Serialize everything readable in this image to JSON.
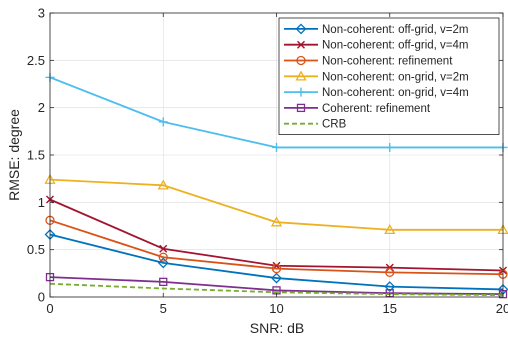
{
  "chart_data": {
    "type": "line",
    "xlabel": "SNR: dB",
    "ylabel": "RMSE: degree",
    "xlim": [
      0,
      20
    ],
    "ylim": [
      0,
      3
    ],
    "x_ticks": [
      "0",
      "5",
      "10",
      "15",
      "20"
    ],
    "y_ticks": [
      "0",
      "0.5",
      "1",
      "1.5",
      "2",
      "2.5",
      "3"
    ],
    "grid": true,
    "legend_position": "top-right",
    "x": [
      0,
      5,
      10,
      15,
      20
    ],
    "series": [
      {
        "name": "Non-coherent: off-grid, v=2m",
        "values": [
          0.66,
          0.36,
          0.2,
          0.11,
          0.08
        ],
        "color": "#0072BD",
        "marker": "diamond",
        "dash": "solid"
      },
      {
        "name": "Non-coherent: off-grid, v=4m",
        "values": [
          1.03,
          0.51,
          0.33,
          0.31,
          0.28
        ],
        "color": "#A2142F",
        "marker": "x",
        "dash": "solid"
      },
      {
        "name": "Non-coherent: refinement",
        "values": [
          0.81,
          0.42,
          0.3,
          0.26,
          0.24
        ],
        "color": "#D95319",
        "marker": "circle",
        "dash": "solid"
      },
      {
        "name": "Non-coherent: on-grid, v=2m",
        "values": [
          1.24,
          1.18,
          0.79,
          0.71,
          0.71
        ],
        "color": "#EDB120",
        "marker": "triangle",
        "dash": "solid"
      },
      {
        "name": "Non-coherent: on-grid, v=4m",
        "values": [
          2.32,
          1.85,
          1.58,
          1.58,
          1.58
        ],
        "color": "#4DBEEE",
        "marker": "plus",
        "dash": "solid"
      },
      {
        "name": "Coherent: refinement",
        "values": [
          0.21,
          0.16,
          0.07,
          0.04,
          0.03
        ],
        "color": "#7E2F8E",
        "marker": "square",
        "dash": "solid"
      },
      {
        "name": "CRB",
        "values": [
          0.14,
          0.09,
          0.05,
          0.03,
          0.02
        ],
        "color": "#77AC30",
        "marker": "none",
        "dash": "dashed"
      }
    ]
  }
}
